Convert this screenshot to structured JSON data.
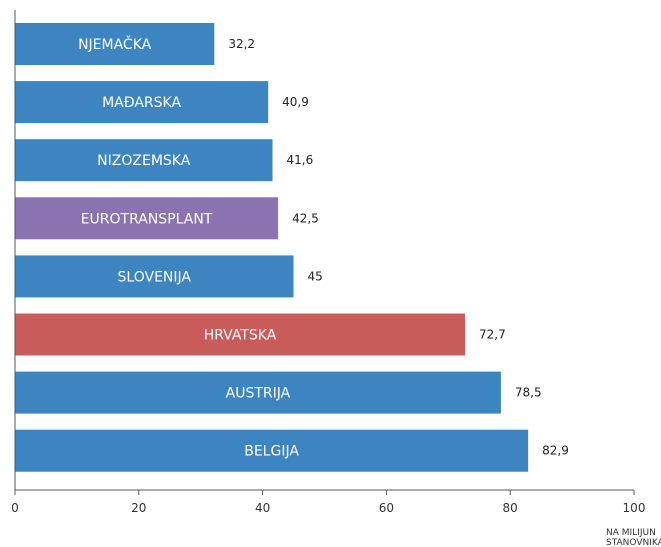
{
  "chart_data": {
    "type": "bar",
    "orientation": "horizontal",
    "categories": [
      "NJEMAČKA",
      "MAĐARSKA",
      "NIZOZEMSKA",
      "EUROTRANSPLANT",
      "SLOVENIJA",
      "HRVATSKA",
      "AUSTRIJA",
      "BELGIJA"
    ],
    "values": [
      32.2,
      40.9,
      41.6,
      42.5,
      45,
      72.7,
      78.5,
      82.9
    ],
    "value_labels": [
      "32,2",
      "40,9",
      "41,6",
      "42,5",
      "45",
      "72,7",
      "78,5",
      "82,9"
    ],
    "bar_colors": [
      "#3d85c0",
      "#3d85c0",
      "#3d85c0",
      "#8b72b0",
      "#3d85c0",
      "#c75c5a",
      "#3d85c0",
      "#3d85c0"
    ],
    "xlim": [
      0,
      100
    ],
    "xticks": [
      0,
      20,
      40,
      60,
      80,
      100
    ],
    "unit_label_lines": [
      "NA MILIJUN",
      "STANOVNIKA"
    ],
    "grid": false
  }
}
